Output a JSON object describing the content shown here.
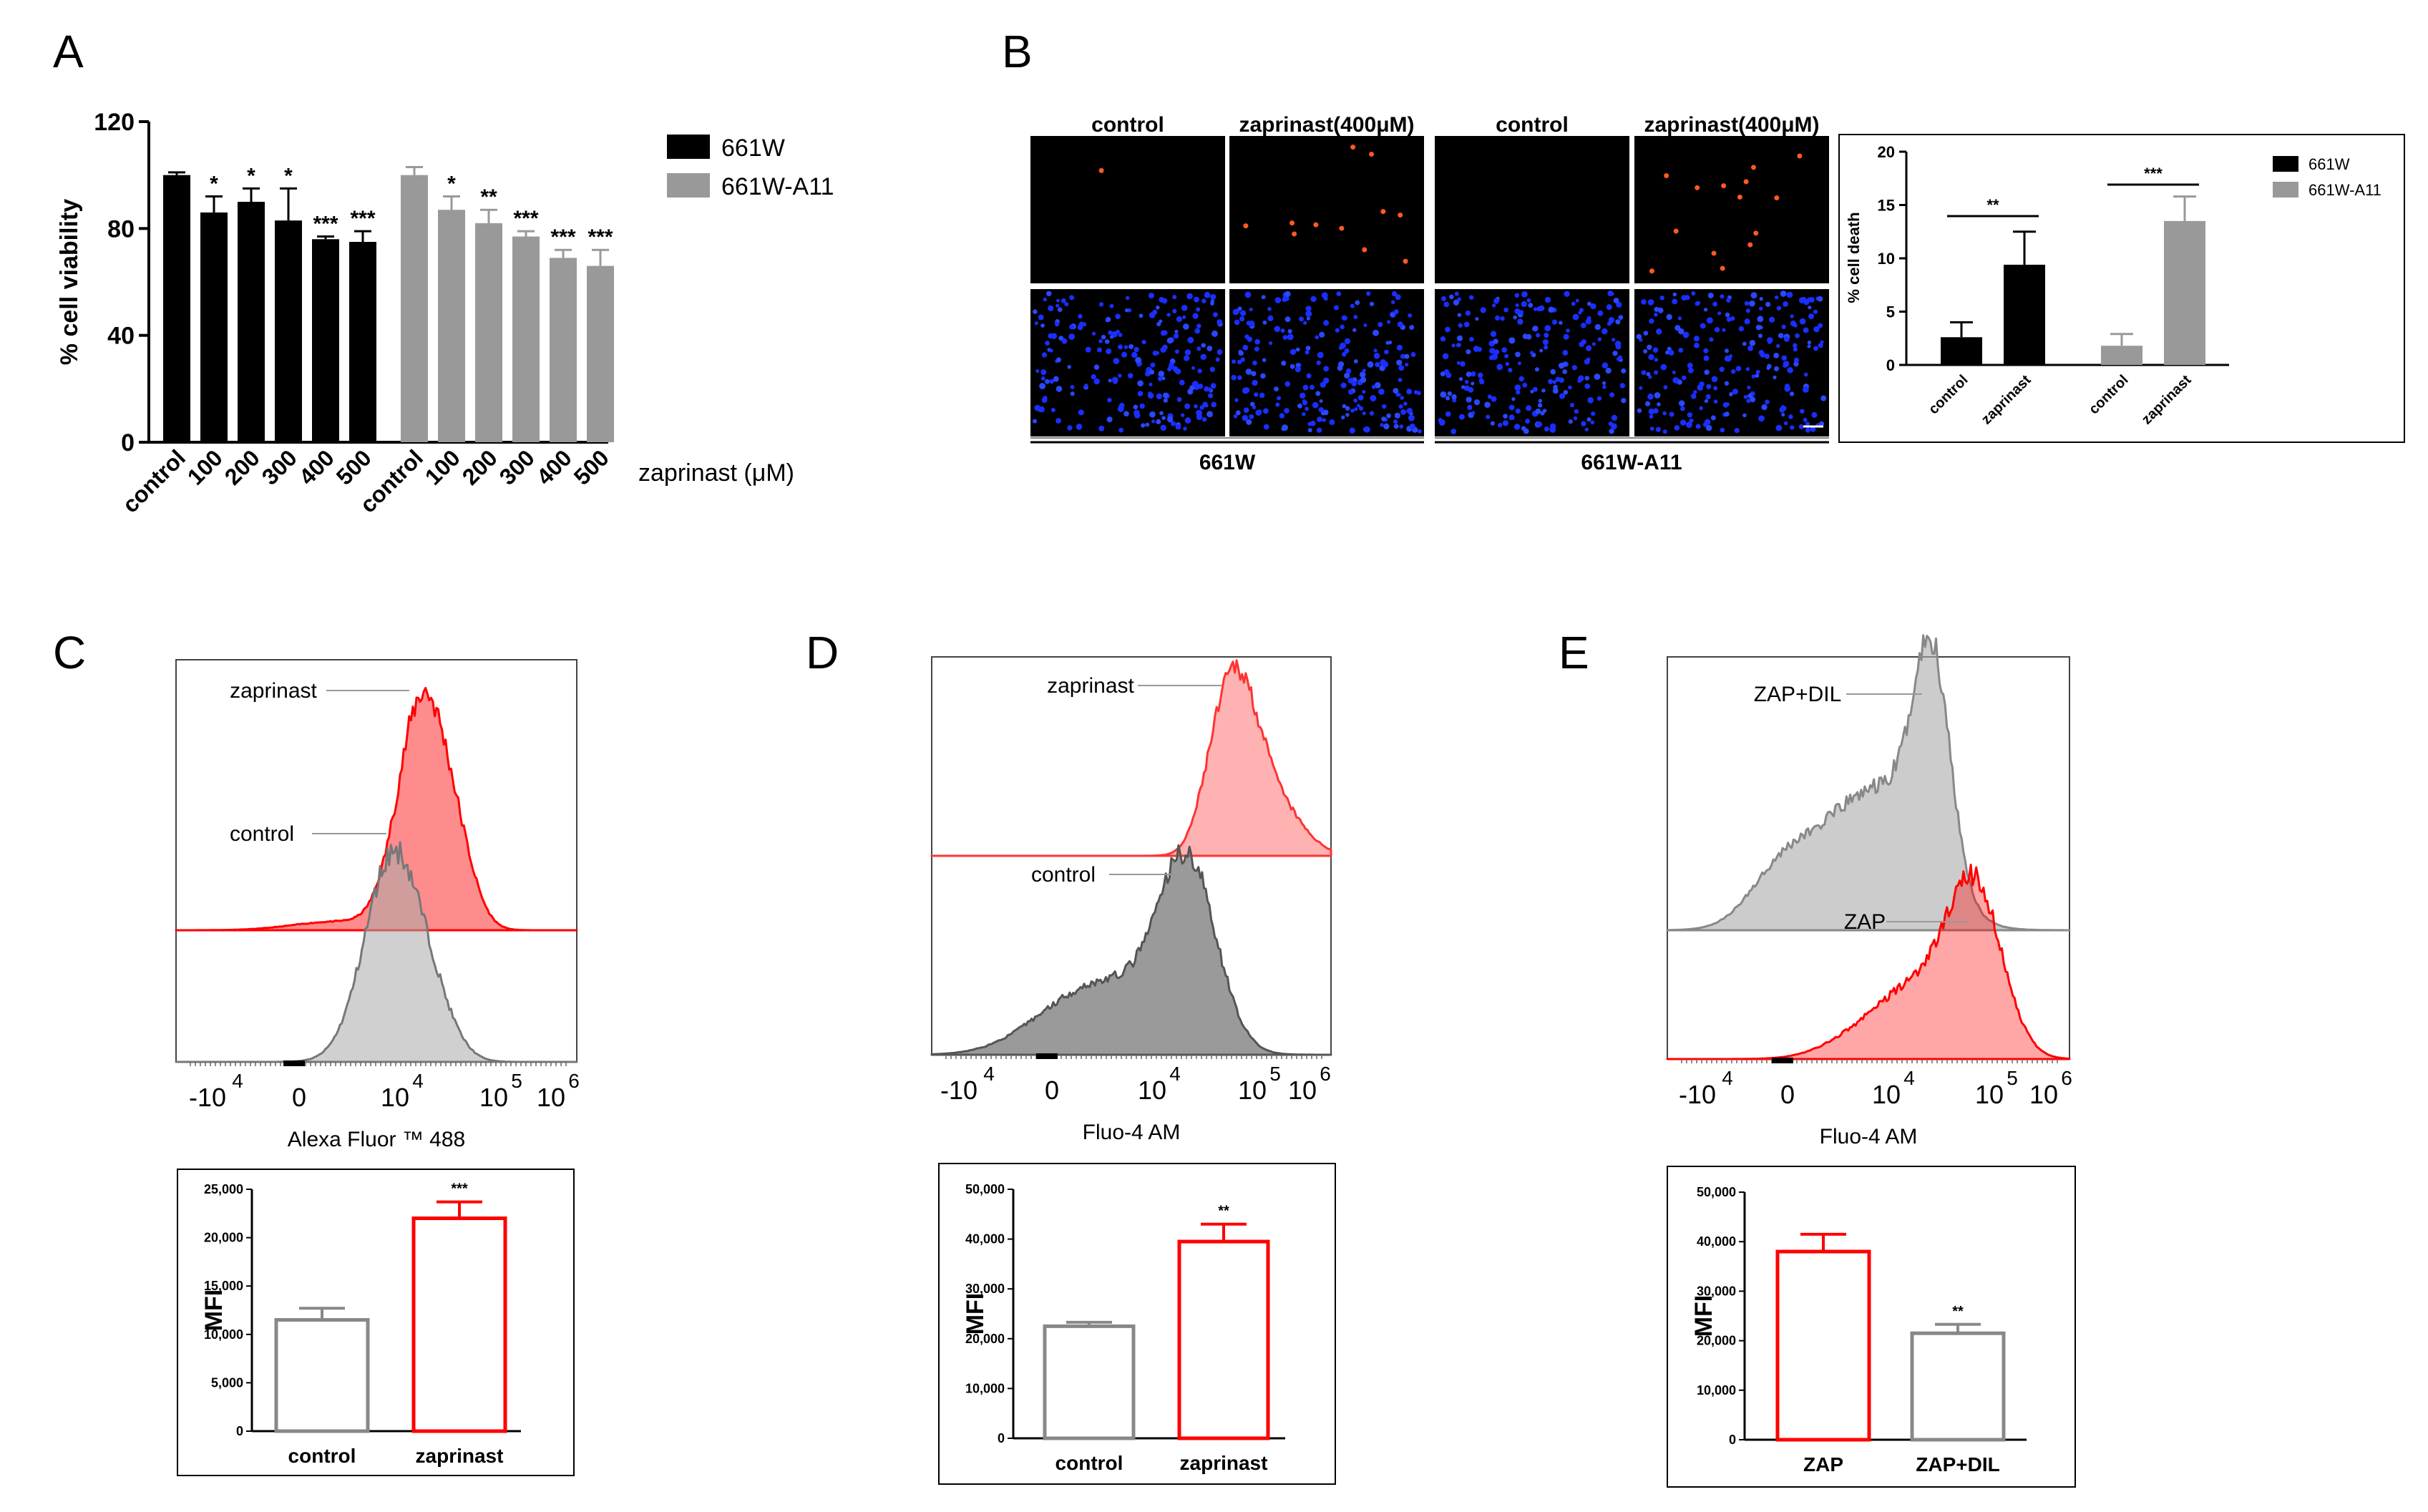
{
  "panels": {
    "A": "A",
    "B": "B",
    "C": "C",
    "D": "D",
    "E": "E"
  },
  "chart_data": [
    {
      "id": "A",
      "type": "bar",
      "ylabel": "% cell viability",
      "xlabel": "zaprinast (μM)",
      "ylim": [
        0,
        120
      ],
      "yticks": [
        "0",
        "40",
        "80",
        "120"
      ],
      "legend": [
        "661W",
        "661W-A11"
      ],
      "legend_placement": "right",
      "series_colors": [
        "#000000",
        "#999999"
      ],
      "groups": [
        {
          "name": "661W",
          "categories": [
            "control",
            "100",
            "200",
            "300",
            "400",
            "500"
          ],
          "values": [
            100,
            86,
            90,
            83,
            76,
            75
          ],
          "errors": [
            1,
            6,
            5,
            12,
            1,
            4
          ],
          "sig": [
            "",
            "*",
            "*",
            "*",
            "***",
            "***"
          ]
        },
        {
          "name": "661W-A11",
          "categories": [
            "control",
            "100",
            "200",
            "300",
            "400",
            "500"
          ],
          "values": [
            100,
            87,
            82,
            77,
            69,
            66
          ],
          "errors": [
            3,
            5,
            5,
            2,
            3,
            6
          ],
          "sig": [
            "",
            "*",
            "**",
            "***",
            "***",
            "***"
          ]
        }
      ]
    },
    {
      "id": "B",
      "type": "bar",
      "image_labels": {
        "col1": "control",
        "col2": "zaprinast(400μM)",
        "col3": "control",
        "col4": "zaprinast(400μM)",
        "group1": "661W",
        "group2": "661W-A11"
      },
      "ylabel": "% cell death",
      "ylim": [
        0,
        20
      ],
      "yticks": [
        "0",
        "5",
        "10",
        "15",
        "20"
      ],
      "legend": [
        "661W",
        "661W-A11"
      ],
      "legend_placement": "top-right",
      "series_colors": [
        "#000000",
        "#999999"
      ],
      "categories": [
        "control",
        "zaprinast",
        "control",
        "zaprinast"
      ],
      "values": [
        2.6,
        9.4,
        1.8,
        13.5
      ],
      "errors": [
        1.4,
        3.1,
        1.1,
        2.3
      ],
      "brackets": [
        {
          "from": 0,
          "to": 1,
          "label": "**"
        },
        {
          "from": 2,
          "to": 3,
          "label": "***"
        }
      ]
    },
    {
      "id": "C",
      "type": "area",
      "xlabel": "Alexa Fluor ™ 488",
      "xticks": [
        "-10",
        "0",
        "10",
        "10",
        "10"
      ],
      "xtick_sup": [
        "4",
        "",
        "4",
        "5",
        "6"
      ],
      "series": [
        {
          "name": "zaprinast",
          "color": "#ff0000"
        },
        {
          "name": "control",
          "color": "#888888"
        }
      ]
    },
    {
      "id": "C-bar",
      "type": "bar",
      "ylabel": "MFI",
      "ylim": [
        0,
        25000
      ],
      "yticks": [
        "0",
        "5,000",
        "10,000",
        "15,000",
        "20,000",
        "25,000"
      ],
      "categories": [
        "control",
        "zaprinast"
      ],
      "values": [
        11500,
        22000
      ],
      "errors": [
        1200,
        1700
      ],
      "sig": [
        "",
        "***"
      ],
      "colors": [
        "#888888",
        "#ff0000"
      ]
    },
    {
      "id": "D",
      "type": "area",
      "xlabel": "Fluo-4 AM",
      "xticks": [
        "-10",
        "0",
        "10",
        "10",
        "10"
      ],
      "xtick_sup": [
        "4",
        "",
        "4",
        "5",
        "6"
      ],
      "series": [
        {
          "name": "zaprinast",
          "color": "#ff0000"
        },
        {
          "name": "control",
          "color": "#555555"
        }
      ]
    },
    {
      "id": "D-bar",
      "type": "bar",
      "ylabel": "MFI",
      "ylim": [
        0,
        50000
      ],
      "yticks": [
        "0",
        "10,000",
        "20,000",
        "30,000",
        "40,000",
        "50,000"
      ],
      "categories": [
        "control",
        "zaprinast"
      ],
      "values": [
        22500,
        39500
      ],
      "errors": [
        800,
        3500
      ],
      "sig": [
        "",
        "**"
      ],
      "colors": [
        "#888888",
        "#ff0000"
      ]
    },
    {
      "id": "E",
      "type": "area",
      "xlabel": "Fluo-4 AM",
      "xticks": [
        "-10",
        "0",
        "10",
        "10",
        "10"
      ],
      "xtick_sup": [
        "4",
        "",
        "4",
        "5",
        "6"
      ],
      "series": [
        {
          "name": "ZAP+DIL",
          "color": "#888888"
        },
        {
          "name": "ZAP",
          "color": "#ff0000"
        }
      ]
    },
    {
      "id": "E-bar",
      "type": "bar",
      "ylabel": "MFI",
      "ylim": [
        0,
        50000
      ],
      "yticks": [
        "0",
        "10,000",
        "20,000",
        "30,000",
        "40,000",
        "50,000"
      ],
      "categories": [
        "ZAP",
        "ZAP+DIL"
      ],
      "values": [
        38000,
        21500
      ],
      "errors": [
        3500,
        1800
      ],
      "sig": [
        "",
        "**"
      ],
      "colors": [
        "#ff0000",
        "#888888"
      ]
    }
  ]
}
